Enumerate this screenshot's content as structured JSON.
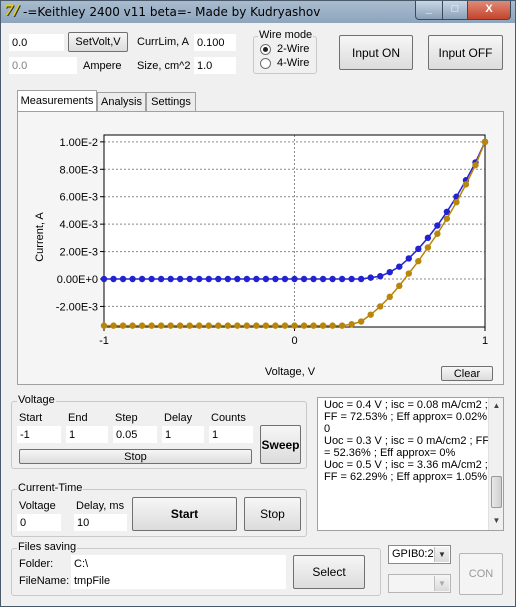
{
  "window": {
    "app_icon": "7/",
    "title": "-=Keithley 2400 v11 beta=- Made by Kudryashov",
    "min_glyph": "_",
    "max_glyph": "□",
    "close_glyph": "X"
  },
  "top": {
    "volt_value": "0.0",
    "setvolt_label": "SetVolt,V",
    "currlim_label": "CurrLim, A",
    "currlim_value": "0.100",
    "ampere_value": "0.0",
    "ampere_label": "Ampere",
    "size_label": "Size, cm^2",
    "size_value": "1.0",
    "wire_mode_title": "Wire mode",
    "wire_2_label": "2-Wire",
    "wire_4_label": "4-Wire",
    "input_on_label": "Input ON",
    "input_off_label": "Input OFF"
  },
  "tabs": [
    "Measurements",
    "Analysis",
    "Settings"
  ],
  "chart_data": {
    "type": "line",
    "xlabel": "Voltage, V",
    "ylabel": "Current, A",
    "xlim": [
      -1,
      1
    ],
    "ylim": [
      -0.0035,
      0.0105
    ],
    "x_ticks": [
      "-1",
      "0",
      "1"
    ],
    "y_ticks": [
      "1.00E-2",
      "8.00E-3",
      "6.00E-3",
      "4.00E-3",
      "2.00E-3",
      "0.00E+0",
      "-2.00E-3"
    ],
    "y_tick_values": [
      0.01,
      0.008,
      0.006,
      0.004,
      0.002,
      0,
      -0.002
    ],
    "grid": true,
    "series": [
      {
        "color": "#2222d0",
        "x": [
          -1,
          -0.95,
          -0.9,
          -0.85,
          -0.8,
          -0.75,
          -0.7,
          -0.65,
          -0.6,
          -0.55,
          -0.5,
          -0.45,
          -0.4,
          -0.35,
          -0.3,
          -0.25,
          -0.2,
          -0.15,
          -0.1,
          -0.05,
          0,
          0.05,
          0.1,
          0.15,
          0.2,
          0.25,
          0.3,
          0.35,
          0.4,
          0.45,
          0.5,
          0.55,
          0.6,
          0.65,
          0.7,
          0.75,
          0.8,
          0.85,
          0.9,
          0.95,
          1
        ],
        "y": [
          0,
          0,
          0,
          0,
          0,
          0,
          0,
          0,
          0,
          0,
          0,
          0,
          0,
          0,
          0,
          0,
          0,
          0,
          0,
          0,
          0,
          0,
          0,
          0,
          0,
          0,
          0,
          0,
          0.0001,
          0.0002,
          0.0005,
          0.0009,
          0.0015,
          0.0022,
          0.003,
          0.0039,
          0.0049,
          0.006,
          0.0072,
          0.0085,
          0.01
        ]
      },
      {
        "color": "#b8860b",
        "x": [
          -1,
          -0.95,
          -0.9,
          -0.85,
          -0.8,
          -0.75,
          -0.7,
          -0.65,
          -0.6,
          -0.55,
          -0.5,
          -0.45,
          -0.4,
          -0.35,
          -0.3,
          -0.25,
          -0.2,
          -0.15,
          -0.1,
          -0.05,
          0,
          0.05,
          0.1,
          0.15,
          0.2,
          0.25,
          0.3,
          0.35,
          0.4,
          0.45,
          0.5,
          0.55,
          0.6,
          0.65,
          0.7,
          0.75,
          0.8,
          0.85,
          0.9,
          0.95,
          1
        ],
        "y": [
          -0.0034,
          -0.0034,
          -0.0034,
          -0.0034,
          -0.0034,
          -0.0034,
          -0.0034,
          -0.0034,
          -0.0034,
          -0.0034,
          -0.0034,
          -0.0034,
          -0.0034,
          -0.0034,
          -0.0034,
          -0.0034,
          -0.0034,
          -0.0034,
          -0.0034,
          -0.0034,
          -0.0034,
          -0.0034,
          -0.0034,
          -0.0034,
          -0.0034,
          -0.0034,
          -0.0033,
          -0.0031,
          -0.0026,
          -0.002,
          -0.0013,
          -0.0005,
          0.0004,
          0.0013,
          0.0023,
          0.0033,
          0.0044,
          0.0056,
          0.0069,
          0.0083,
          0.01
        ]
      }
    ]
  },
  "clear_label": "Clear",
  "voltage_group": {
    "title": "Voltage",
    "start_label": "Start",
    "end_label": "End",
    "step_label": "Step",
    "delay_label": "Delay",
    "counts_label": "Counts",
    "start_value": "-1",
    "end_value": "1",
    "step_value": "0.05",
    "delay_value": "1",
    "counts_value": "1",
    "stop_label": "Stop",
    "sweep_label": "Sweep"
  },
  "log_text": "Uoc = 0.4 V ; isc = 0.08 mA/cm2 ; FF = 72.53% ; Eff approx= 0.02%\n0\nUoc = 0.3 V ; isc = 0 mA/cm2 ; FF = 52.36% ; Eff approx= 0%\nUoc = 0.5 V ; isc = 3.36 mA/cm2 ; FF = 62.29% ; Eff approx= 1.05%",
  "scroll_up": "▲",
  "scroll_down": "▼",
  "current_time_group": {
    "title": "Current-Time",
    "voltage_label": "Voltage",
    "delay_label": "Delay, ms",
    "voltage_value": "0",
    "delay_value": "10",
    "start_label": "Start",
    "stop_label": "Stop"
  },
  "files_group": {
    "title": "Files saving",
    "folder_label": "Folder:",
    "folder_value": "C:\\",
    "filename_label": "FileName:",
    "filename_value": "tmpFile",
    "select_label": "Select"
  },
  "gpib_value": "GPIB0:2",
  "dropdown_arrow": "▼",
  "con_label": "CON"
}
